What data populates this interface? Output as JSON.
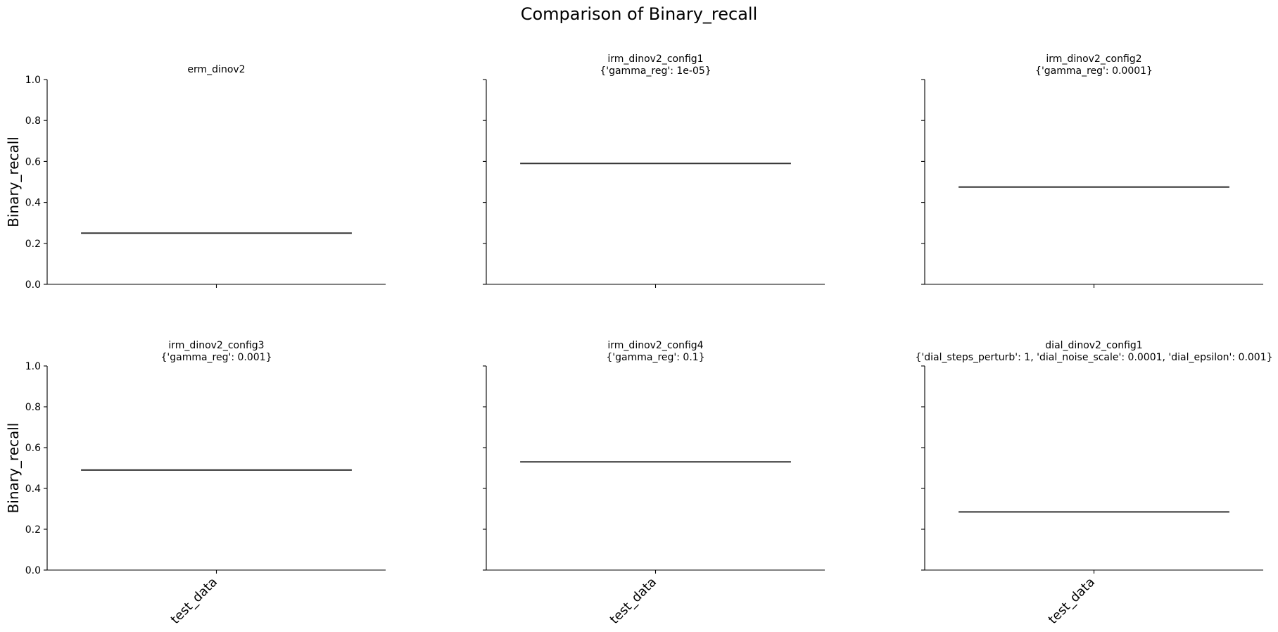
{
  "figure_title": "Comparison of Binary_recall",
  "chart_data": [
    {
      "type": "box",
      "title": [
        "erm_dinov2"
      ],
      "ylabel": "Binary_recall",
      "categories": [
        "test_data"
      ],
      "values": [
        0.25
      ],
      "ylim": [
        0,
        1.0
      ],
      "yticks": [
        "0.0",
        "0.2",
        "0.4",
        "0.6",
        "0.8",
        "1.0"
      ],
      "show_yticklabels": true,
      "show_xticklabels": false
    },
    {
      "type": "box",
      "title": [
        "irm_dinov2_config1",
        "{'gamma_reg': 1e-05}"
      ],
      "ylabel": "",
      "categories": [
        "test_data"
      ],
      "values": [
        0.59
      ],
      "ylim": [
        0,
        1.0
      ],
      "yticks": [
        "0.0",
        "0.2",
        "0.4",
        "0.6",
        "0.8",
        "1.0"
      ],
      "show_yticklabels": false,
      "show_xticklabels": false
    },
    {
      "type": "box",
      "title": [
        "irm_dinov2_config2",
        "{'gamma_reg': 0.0001}"
      ],
      "ylabel": "",
      "categories": [
        "test_data"
      ],
      "values": [
        0.475
      ],
      "ylim": [
        0,
        1.0
      ],
      "yticks": [
        "0.0",
        "0.2",
        "0.4",
        "0.6",
        "0.8",
        "1.0"
      ],
      "show_yticklabels": false,
      "show_xticklabels": false
    },
    {
      "type": "box",
      "title": [
        "irm_dinov2_config3",
        "{'gamma_reg': 0.001}"
      ],
      "ylabel": "Binary_recall",
      "categories": [
        "test_data"
      ],
      "values": [
        0.49
      ],
      "ylim": [
        0,
        1.0
      ],
      "yticks": [
        "0.0",
        "0.2",
        "0.4",
        "0.6",
        "0.8",
        "1.0"
      ],
      "show_yticklabels": true,
      "show_xticklabels": true
    },
    {
      "type": "box",
      "title": [
        "irm_dinov2_config4",
        "{'gamma_reg': 0.1}"
      ],
      "ylabel": "",
      "categories": [
        "test_data"
      ],
      "values": [
        0.53
      ],
      "ylim": [
        0,
        1.0
      ],
      "yticks": [
        "0.0",
        "0.2",
        "0.4",
        "0.6",
        "0.8",
        "1.0"
      ],
      "show_yticklabels": false,
      "show_xticklabels": true
    },
    {
      "type": "box",
      "title": [
        "dial_dinov2_config1",
        "{'dial_steps_perturb': 1, 'dial_noise_scale': 0.0001, 'dial_epsilon': 0.001}"
      ],
      "ylabel": "",
      "categories": [
        "test_data"
      ],
      "values": [
        0.285
      ],
      "ylim": [
        0,
        1.0
      ],
      "yticks": [
        "0.0",
        "0.2",
        "0.4",
        "0.6",
        "0.8",
        "1.0"
      ],
      "show_yticklabels": false,
      "show_xticklabels": true
    }
  ]
}
